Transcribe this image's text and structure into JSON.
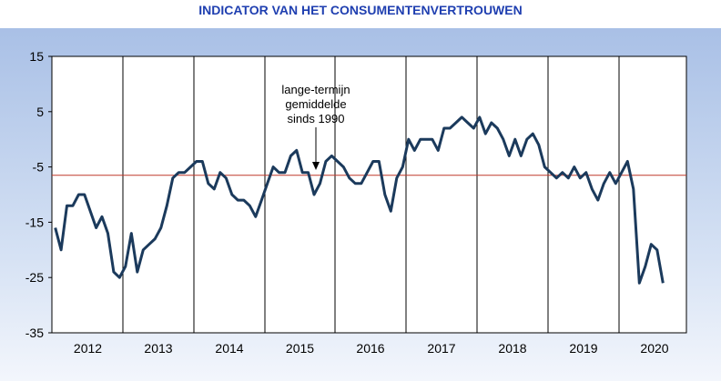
{
  "chart_data": {
    "type": "line",
    "title": "INDICATOR VAN HET CONSUMENTENVERTROUWEN",
    "y_ticks": [
      "15",
      "5",
      "-5",
      "-15",
      "-25",
      "-35"
    ],
    "ylim": [
      -35,
      15
    ],
    "x_ticks": [
      "2012",
      "2013",
      "2014",
      "2015",
      "2016",
      "2017",
      "2018",
      "2019",
      "2020"
    ],
    "grid": "vertical lines at year boundaries",
    "reference_line": {
      "value": -6.5,
      "color": "#c0392b"
    },
    "annotation": {
      "lines": [
        "lange-termijn",
        "gemiddelde",
        "sinds 1990"
      ],
      "points_to": "2015-07"
    },
    "series": [
      {
        "color": "#1b3a5c",
        "start": "2012-01",
        "frequency": "monthly",
        "values": [
          -16,
          -20,
          -12,
          -12,
          -10,
          -10,
          -13,
          -16,
          -14,
          -17,
          -24,
          -25,
          -23,
          -17,
          -24,
          -20,
          -19,
          -18,
          -16,
          -12,
          -7,
          -6,
          -6,
          -5,
          -4,
          -4,
          -8,
          -9,
          -6,
          -7,
          -10,
          -11,
          -11,
          -12,
          -14,
          -11,
          -8,
          -5,
          -6,
          -6,
          -3,
          -2,
          -6,
          -6,
          -10,
          -8,
          -4,
          -3,
          -4,
          -5,
          -7,
          -8,
          -8,
          -6,
          -4,
          -4,
          -10,
          -13,
          -7,
          -5,
          0,
          -2,
          0,
          0,
          0,
          -2,
          2,
          2,
          3,
          4,
          3,
          2,
          4,
          1,
          3,
          2,
          0,
          -3,
          0,
          -3,
          0,
          1,
          -1,
          -5,
          -6,
          -7,
          -6,
          -7,
          -5,
          -7,
          -6,
          -9,
          -11,
          -8,
          -6,
          -8,
          -6,
          -4,
          -9,
          -26,
          -23,
          -19,
          -20,
          -26
        ]
      }
    ]
  }
}
